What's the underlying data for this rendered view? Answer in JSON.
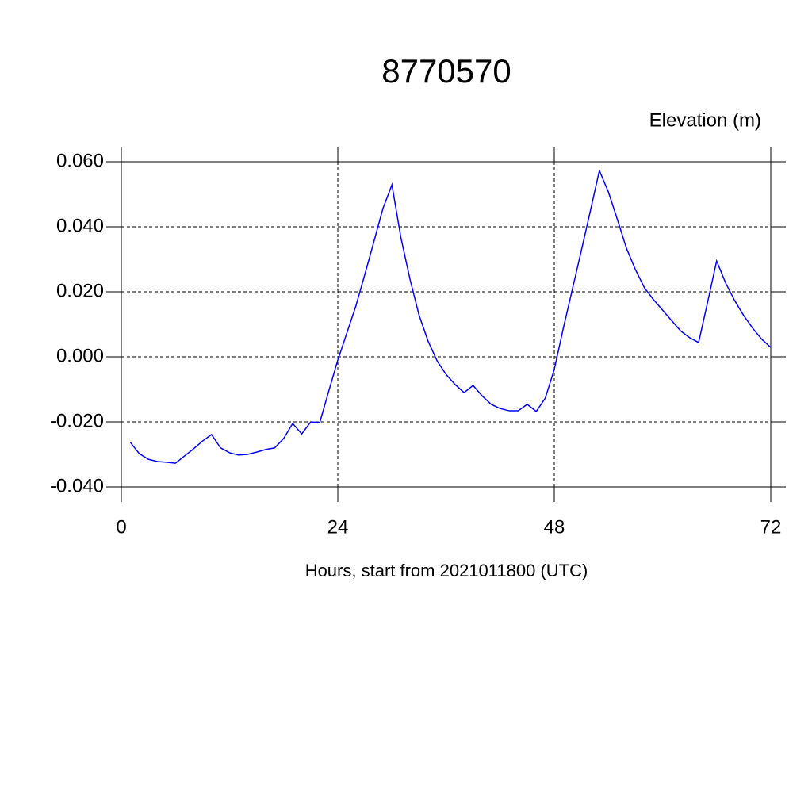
{
  "chart_data": {
    "type": "line",
    "title": "8770570",
    "y_axis_title": "Elevation (m)",
    "x_axis_title": "Hours, start from 2021011800 (UTC)",
    "x": [
      1,
      2,
      3,
      4,
      5,
      6,
      7,
      8,
      9,
      10,
      11,
      12,
      13,
      14,
      15,
      16,
      17,
      18,
      19,
      20,
      21,
      22,
      23,
      24,
      25,
      26,
      27,
      28,
      29,
      30,
      31,
      32,
      33,
      34,
      35,
      36,
      37,
      38,
      39,
      40,
      41,
      42,
      43,
      44,
      45,
      46,
      47,
      48,
      49,
      50,
      51,
      52,
      53,
      54,
      55,
      56,
      57,
      58,
      59,
      60,
      61,
      62,
      63,
      64,
      65,
      66,
      67,
      68,
      69,
      70,
      71,
      72
    ],
    "series": [
      {
        "color": "#0000ff",
        "values": [
          -0.0263,
          -0.0298,
          -0.0315,
          -0.0322,
          -0.0324,
          -0.0327,
          -0.0305,
          -0.0283,
          -0.0259,
          -0.0239,
          -0.028,
          -0.0295,
          -0.0302,
          -0.03,
          -0.0293,
          -0.0285,
          -0.028,
          -0.0251,
          -0.0205,
          -0.0237,
          -0.02,
          -0.0202,
          -0.0105,
          -0.001,
          0.0073,
          0.0156,
          0.0254,
          0.0354,
          0.0456,
          0.0529,
          0.0366,
          0.0239,
          0.0129,
          0.0049,
          -0.0012,
          -0.0054,
          -0.0085,
          -0.011,
          -0.0088,
          -0.012,
          -0.0146,
          -0.0159,
          -0.0166,
          -0.0166,
          -0.0146,
          -0.0168,
          -0.0127,
          -0.0039,
          0.0088,
          0.0207,
          0.0327,
          0.0449,
          0.0573,
          0.0507,
          0.0422,
          0.0334,
          0.0268,
          0.0212,
          0.0176,
          0.0144,
          0.0112,
          0.008,
          0.0059,
          0.0044,
          0.0168,
          0.0295,
          0.0227,
          0.0173,
          0.0127,
          0.0088,
          0.0054,
          0.0029
        ]
      }
    ],
    "xlim": [
      0,
      72
    ],
    "xticks": [
      0,
      24,
      48,
      72
    ],
    "ylim": [
      -0.04,
      0.06
    ],
    "yticks": [
      {
        "value": -0.04,
        "label": "-0.040"
      },
      {
        "value": -0.02,
        "label": "-0.020"
      },
      {
        "value": 0,
        "label": "0.000"
      },
      {
        "value": 0.02,
        "label": "0.020"
      },
      {
        "value": 0.04,
        "label": "0.040"
      },
      {
        "value": 0.06,
        "label": "0.060"
      }
    ],
    "grid": true
  }
}
